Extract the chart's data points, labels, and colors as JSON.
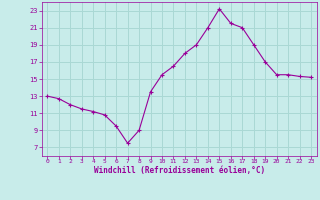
{
  "hours": [
    0,
    1,
    2,
    3,
    4,
    5,
    6,
    7,
    8,
    9,
    10,
    11,
    12,
    13,
    14,
    15,
    16,
    17,
    18,
    19,
    20,
    21,
    22,
    23
  ],
  "values": [
    13.0,
    12.7,
    12.0,
    11.5,
    11.2,
    10.8,
    9.5,
    7.5,
    9.0,
    13.5,
    15.5,
    16.5,
    18.0,
    19.0,
    21.0,
    23.2,
    21.5,
    21.0,
    19.0,
    17.0,
    15.5,
    15.5,
    15.3,
    15.2
  ],
  "line_color": "#990099",
  "marker_color": "#990099",
  "bg_color": "#c8ecea",
  "grid_color": "#aad8d4",
  "xlabel": "Windchill (Refroidissement éolien,°C)",
  "xlabel_color": "#990099",
  "tick_color": "#990099",
  "ylim": [
    6,
    24
  ],
  "xlim": [
    -0.5,
    23.5
  ],
  "yticks": [
    7,
    9,
    11,
    13,
    15,
    17,
    19,
    21,
    23
  ],
  "xticks": [
    0,
    1,
    2,
    3,
    4,
    5,
    6,
    7,
    8,
    9,
    10,
    11,
    12,
    13,
    14,
    15,
    16,
    17,
    18,
    19,
    20,
    21,
    22,
    23
  ]
}
